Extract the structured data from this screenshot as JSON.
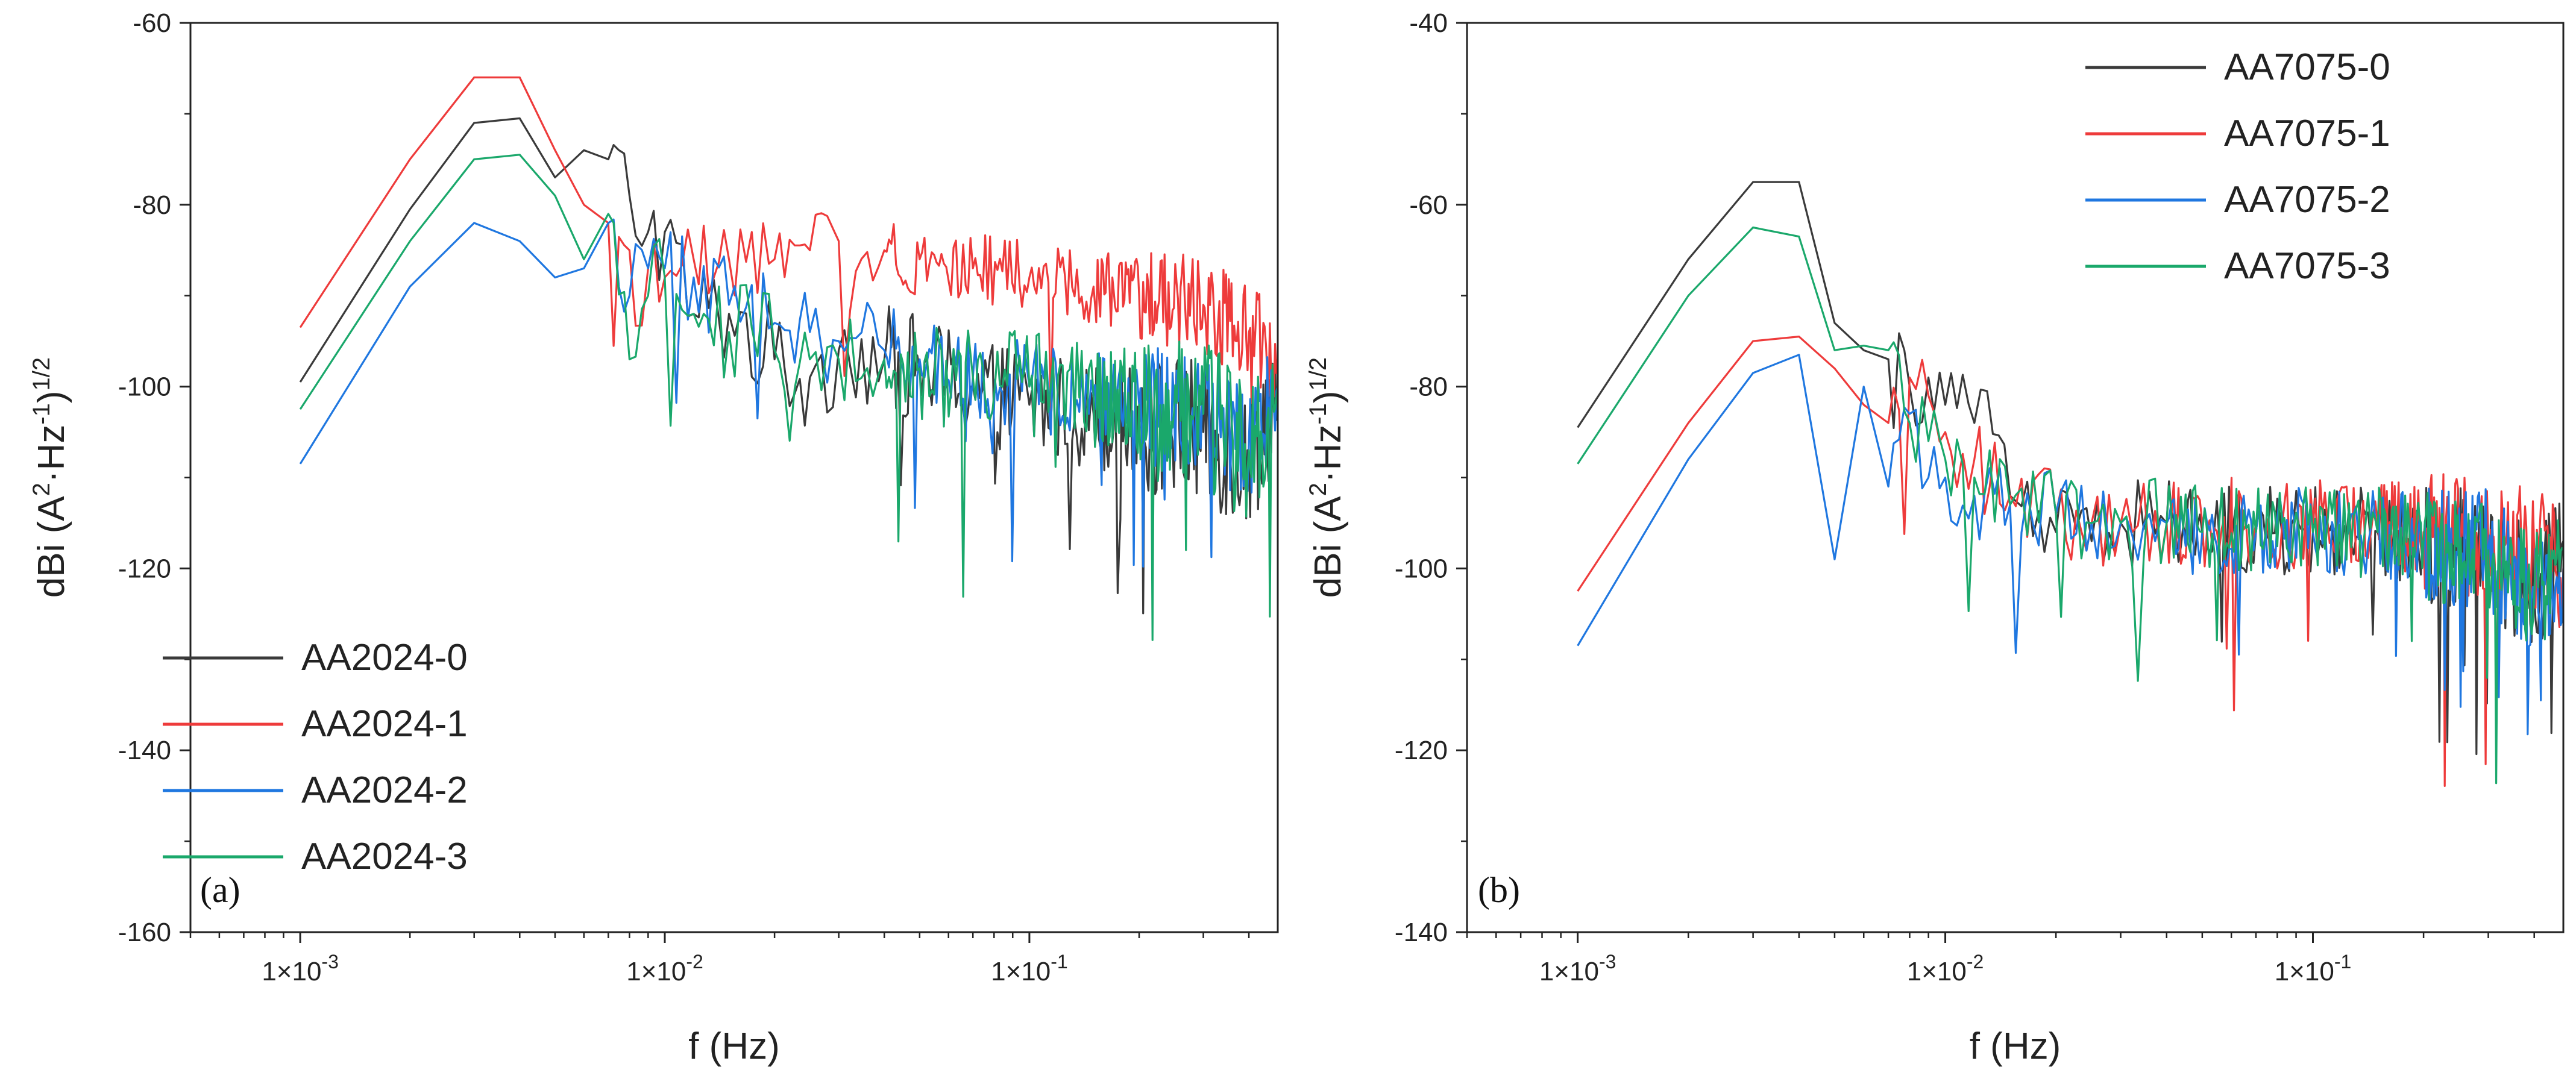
{
  "chart_data": [
    {
      "type": "line",
      "panel_label": "(a)",
      "xscale": "log",
      "xlim": [
        0.0005,
        0.48
      ],
      "ylim": [
        -160,
        -60
      ],
      "xticks": [
        0.001,
        0.01,
        0.1
      ],
      "xtick_labels": [
        {
          "base": "1×10",
          "exp": "-3"
        },
        {
          "base": "1×10",
          "exp": "-2"
        },
        {
          "base": "1×10",
          "exp": "-1"
        }
      ],
      "yticks": [
        -60,
        -80,
        -100,
        -120,
        -140,
        -160
      ],
      "xlabel": "f (Hz)",
      "ylabel": {
        "p1": "dBi (A",
        "s1": "2",
        "p2": "·Hz",
        "s2": "-1",
        "p3": ")",
        "s3": "1/2"
      },
      "legend_position": "bottom-left",
      "series": [
        {
          "name": "AA2024-0",
          "color": "#3a3a3a",
          "x": [
            0.001,
            0.002,
            0.003,
            0.004,
            0.005,
            0.006,
            0.007,
            0.008,
            0.009,
            0.01,
            0.012,
            0.015,
            0.02,
            0.025,
            0.03,
            0.04,
            0.05,
            0.07,
            0.1,
            0.15,
            0.2,
            0.3,
            0.4,
            0.48
          ],
          "y": [
            -99.5,
            -80.5,
            -71,
            -70.5,
            -77,
            -74,
            -75,
            -79,
            -83,
            -83,
            -92,
            -92,
            -97,
            -99,
            -96,
            -97,
            -98,
            -100,
            -102,
            -103,
            -104,
            -105,
            -108,
            -100
          ],
          "noise": 6
        },
        {
          "name": "AA2024-1",
          "color": "#ee3b3b",
          "x": [
            0.001,
            0.002,
            0.003,
            0.004,
            0.005,
            0.006,
            0.007,
            0.008,
            0.009,
            0.01,
            0.012,
            0.015,
            0.02,
            0.025,
            0.03,
            0.04,
            0.05,
            0.07,
            0.1,
            0.15,
            0.2,
            0.3,
            0.4,
            0.48
          ],
          "y": [
            -93.5,
            -75,
            -66,
            -66,
            -74,
            -80,
            -82,
            -85,
            -87,
            -88,
            -86,
            -86,
            -86,
            -85,
            -84,
            -85,
            -86,
            -87,
            -88,
            -89,
            -90,
            -91,
            -94,
            -97
          ],
          "noise": 4
        },
        {
          "name": "AA2024-2",
          "color": "#1f77e0",
          "x": [
            0.001,
            0.002,
            0.003,
            0.004,
            0.005,
            0.006,
            0.007,
            0.008,
            0.009,
            0.01,
            0.012,
            0.015,
            0.02,
            0.025,
            0.03,
            0.04,
            0.05,
            0.07,
            0.1,
            0.15,
            0.2,
            0.3,
            0.4,
            0.48
          ],
          "y": [
            -108.5,
            -89,
            -82,
            -84,
            -88,
            -87,
            -82,
            -90,
            -87,
            -87,
            -88,
            -91,
            -93,
            -94,
            -95,
            -96,
            -97,
            -99,
            -100,
            -101,
            -102,
            -103,
            -106,
            -100
          ],
          "noise": 5
        },
        {
          "name": "AA2024-3",
          "color": "#1aa86b",
          "x": [
            0.001,
            0.002,
            0.003,
            0.004,
            0.005,
            0.006,
            0.007,
            0.008,
            0.009,
            0.01,
            0.012,
            0.015,
            0.02,
            0.025,
            0.03,
            0.04,
            0.05,
            0.07,
            0.1,
            0.15,
            0.2,
            0.3,
            0.4,
            0.48
          ],
          "y": [
            -102.5,
            -84,
            -75,
            -74.5,
            -79,
            -86,
            -81,
            -97,
            -90,
            -88,
            -92,
            -94,
            -96,
            -97,
            -97,
            -97,
            -98,
            -99,
            -100,
            -101,
            -102,
            -103,
            -107,
            -100
          ],
          "noise": 6
        }
      ]
    },
    {
      "type": "line",
      "panel_label": "(b)",
      "xscale": "log",
      "xlim": [
        0.0005,
        0.48
      ],
      "ylim": [
        -140,
        -40
      ],
      "xticks": [
        0.001,
        0.01,
        0.1
      ],
      "xtick_labels": [
        {
          "base": "1×10",
          "exp": "-3"
        },
        {
          "base": "1×10",
          "exp": "-2"
        },
        {
          "base": "1×10",
          "exp": "-1"
        }
      ],
      "yticks": [
        -40,
        -60,
        -80,
        -100,
        -120,
        -140
      ],
      "xlabel": "f (Hz)",
      "ylabel": {
        "p1": "dBi (A",
        "s1": "2",
        "p2": "·Hz",
        "s2": "-1",
        "p3": ")",
        "s3": "1/2"
      },
      "legend_position": "top-right",
      "series": [
        {
          "name": "AA7075-0",
          "color": "#3a3a3a",
          "x": [
            0.001,
            0.002,
            0.003,
            0.004,
            0.005,
            0.006,
            0.007,
            0.008,
            0.009,
            0.01,
            0.012,
            0.013,
            0.015,
            0.02,
            0.025,
            0.03,
            0.04,
            0.05,
            0.07,
            0.1,
            0.15,
            0.2,
            0.3,
            0.4,
            0.48
          ],
          "y": [
            -84.5,
            -66,
            -57.5,
            -57.5,
            -73,
            -76,
            -77,
            -80,
            -79,
            -82,
            -84,
            -80.5,
            -92,
            -96,
            -97,
            -95,
            -95,
            -96,
            -96,
            -96,
            -96,
            -97,
            -98,
            -103,
            -97
          ],
          "noise": 5
        },
        {
          "name": "AA7075-1",
          "color": "#ee3b3b",
          "x": [
            0.001,
            0.002,
            0.003,
            0.004,
            0.005,
            0.006,
            0.007,
            0.008,
            0.009,
            0.01,
            0.012,
            0.015,
            0.02,
            0.025,
            0.03,
            0.04,
            0.05,
            0.07,
            0.1,
            0.15,
            0.2,
            0.3,
            0.4,
            0.48
          ],
          "y": [
            -102.5,
            -84,
            -75,
            -74.5,
            -78,
            -82,
            -84,
            -79,
            -81,
            -85,
            -88,
            -92,
            -94,
            -95,
            -95,
            -95,
            -95,
            -95,
            -95,
            -95,
            -96,
            -97,
            -98,
            -100
          ],
          "noise": 5
        },
        {
          "name": "AA7075-2",
          "color": "#1f77e0",
          "x": [
            0.001,
            0.002,
            0.003,
            0.004,
            0.005,
            0.006,
            0.007,
            0.008,
            0.009,
            0.01,
            0.012,
            0.015,
            0.02,
            0.025,
            0.03,
            0.04,
            0.05,
            0.07,
            0.1,
            0.15,
            0.2,
            0.3,
            0.4,
            0.48
          ],
          "y": [
            -108.5,
            -88,
            -78.5,
            -76.5,
            -99,
            -80,
            -91,
            -83,
            -90,
            -90,
            -92,
            -93,
            -94,
            -95,
            -95,
            -95,
            -96,
            -96,
            -96,
            -96,
            -97,
            -98,
            -104,
            -100
          ],
          "noise": 5
        },
        {
          "name": "AA7075-3",
          "color": "#1aa86b",
          "x": [
            0.001,
            0.002,
            0.003,
            0.004,
            0.005,
            0.006,
            0.007,
            0.008,
            0.009,
            0.01,
            0.012,
            0.015,
            0.02,
            0.025,
            0.03,
            0.04,
            0.05,
            0.07,
            0.1,
            0.15,
            0.2,
            0.3,
            0.4,
            0.48
          ],
          "y": [
            -88.5,
            -70,
            -62.5,
            -63.5,
            -76,
            -75.5,
            -76,
            -84,
            -86,
            -88,
            -90,
            -93,
            -94,
            -95,
            -95,
            -95,
            -96,
            -96,
            -96,
            -96,
            -97,
            -98,
            -103,
            -98
          ],
          "noise": 5
        }
      ]
    }
  ]
}
